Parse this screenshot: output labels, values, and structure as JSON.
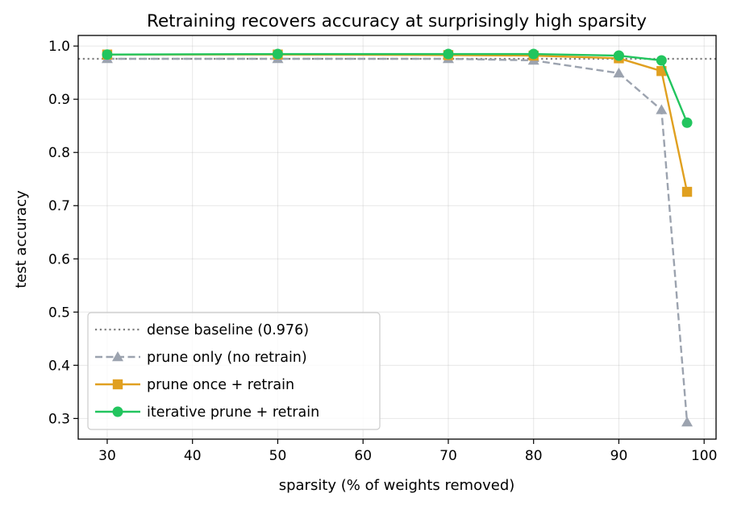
{
  "chart_data": {
    "type": "line",
    "title": "Retraining recovers accuracy at surprisingly high sparsity",
    "xlabel": "sparsity (% of weights removed)",
    "ylabel": "test accuracy",
    "xlim": [
      26.6,
      101.4
    ],
    "ylim": [
      0.2612,
      1.0199
    ],
    "x_ticks": [
      30,
      40,
      50,
      60,
      70,
      80,
      90,
      100
    ],
    "y_ticks": [
      0.3,
      0.4,
      0.5,
      0.6,
      0.7,
      0.8,
      0.9,
      1.0
    ],
    "x_tick_labels": [
      "30",
      "40",
      "50",
      "60",
      "70",
      "80",
      "90",
      "100"
    ],
    "y_tick_labels": [
      "0.3",
      "0.4",
      "0.5",
      "0.6",
      "0.7",
      "0.8",
      "0.9",
      "1.0"
    ],
    "grid": true,
    "legend_position": "lower-left",
    "baseline": {
      "name": "dense baseline (0.976)",
      "value": 0.976,
      "color": "#7f7f7f",
      "style": "dotted"
    },
    "series": [
      {
        "name": "prune only (no retrain)",
        "color": "#9ca3af",
        "style": "dashed",
        "marker": "triangle",
        "x": [
          30,
          50,
          70,
          80,
          90,
          95,
          98
        ],
        "y": [
          0.976,
          0.976,
          0.976,
          0.973,
          0.949,
          0.88,
          0.293
        ]
      },
      {
        "name": "prune once + retrain",
        "color": "#e0a020",
        "style": "solid",
        "marker": "square",
        "x": [
          30,
          50,
          70,
          80,
          90,
          95,
          98
        ],
        "y": [
          0.984,
          0.984,
          0.983,
          0.982,
          0.977,
          0.953,
          0.726
        ]
      },
      {
        "name": "iterative prune + retrain",
        "color": "#22c55e",
        "style": "solid",
        "marker": "circle",
        "x": [
          30,
          50,
          70,
          80,
          90,
          95,
          98
        ],
        "y": [
          0.984,
          0.985,
          0.985,
          0.985,
          0.982,
          0.973,
          0.856
        ]
      }
    ]
  }
}
